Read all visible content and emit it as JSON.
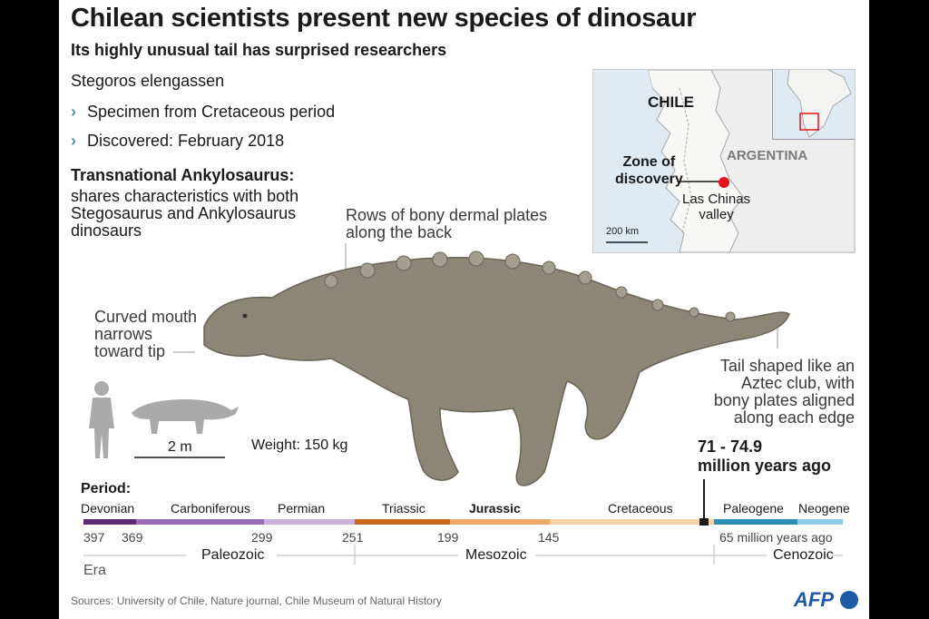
{
  "header": {
    "title": "Chilean scientists present new species of dinosaur",
    "subtitle": "Its highly unusual tail has surprised researchers"
  },
  "facts": {
    "species": "Stegoros elengassen",
    "bullets": [
      "Specimen from Cretaceous period",
      "Discovered: February 2018"
    ],
    "transnational_head": "Transnational Ankylosaurus:",
    "transnational_body": "shares characteristics with both Stegosaurus and Ankylosaurus dinosaurs"
  },
  "annotations": {
    "plates": [
      "Rows of bony dermal plates",
      "along the back"
    ],
    "mouth": [
      "Curved mouth",
      "narrows",
      "toward tip"
    ],
    "tail": [
      "Tail shaped like an",
      "Aztec club, with",
      "bony plates aligned",
      "along each edge"
    ]
  },
  "scale": {
    "size_label": "2 m",
    "weight": "Weight: 150 kg"
  },
  "map": {
    "chile": "CHILE",
    "argentina": "ARGENTINA",
    "zone": [
      "Zone of",
      "discovery"
    ],
    "valley": [
      "Las Chinas",
      "valley"
    ],
    "scale_label": "200 km"
  },
  "timeline": {
    "heading": "Period:",
    "age_line1": "71 - 74.9",
    "age_line2": "million years ago",
    "periods": [
      {
        "name": "Devonian",
        "color": "#5b2a6e"
      },
      {
        "name": "Carboniferous",
        "color": "#9b6bb3"
      },
      {
        "name": "Permian",
        "color": "#c9b0d8"
      },
      {
        "name": "Triassic",
        "color": "#c9671c"
      },
      {
        "name": "Jurassic",
        "color": "#eea869"
      },
      {
        "name": "Cretaceous",
        "color": "#f3d2a8"
      },
      {
        "name": "Paleogene",
        "color": "#2a8fb5"
      },
      {
        "name": "Neogene",
        "color": "#8fcde6"
      }
    ],
    "ticks": [
      "397",
      "369",
      "299",
      "251",
      "199",
      "145",
      "65 million years ago"
    ],
    "eras": {
      "label": "Era",
      "paleozoic": "Paleozoic",
      "mesozoic": "Mesozoic",
      "cenozoic": "Cenozoic"
    }
  },
  "footer": {
    "sources": "Sources: University of Chile, Nature journal, Chile Museum of Natural History",
    "logo": "AFP"
  }
}
